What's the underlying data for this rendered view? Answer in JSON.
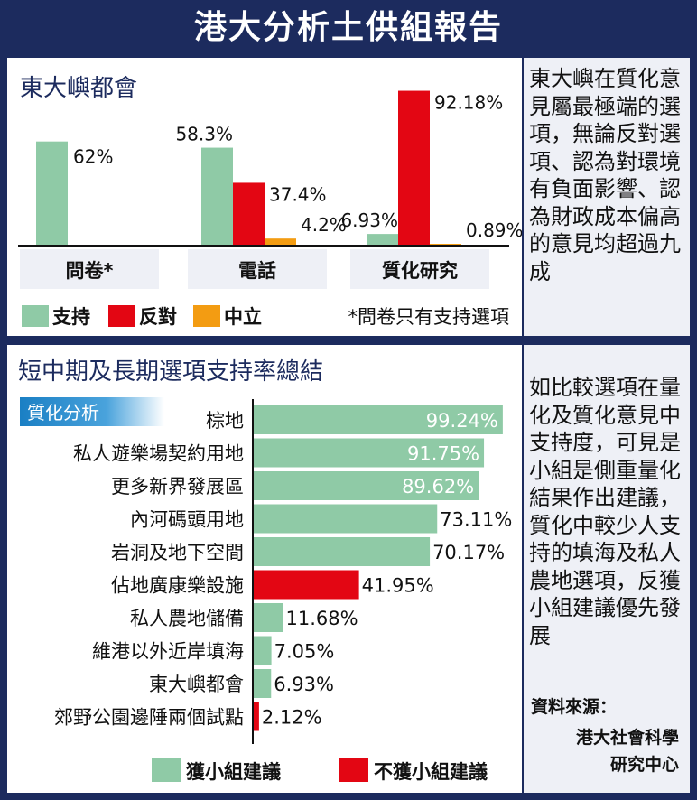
{
  "page_title": "港大分析土供組報告",
  "colors": {
    "support": "#8fcaa6",
    "oppose": "#e30613",
    "neutral": "#f39c12",
    "navy": "#1c2b5e"
  },
  "chart_data": [
    {
      "type": "bar",
      "title": "東大嶼都會",
      "categories": [
        "問卷*",
        "電話",
        "質化研究"
      ],
      "series": [
        {
          "name": "支持",
          "values": [
            62,
            58.3,
            6.93
          ],
          "labels": [
            "62%",
            "58.3%",
            "6.93%"
          ]
        },
        {
          "name": "反對",
          "values": [
            null,
            37.4,
            92.18
          ],
          "labels": [
            "",
            "37.4%",
            "92.18%"
          ]
        },
        {
          "name": "中立",
          "values": [
            null,
            4.2,
            0.89
          ],
          "labels": [
            "",
            "4.2%",
            "0.89%"
          ]
        }
      ],
      "ylim": [
        0,
        100
      ],
      "legend_position": "bottom",
      "note": "*問卷只有支持選項"
    },
    {
      "type": "bar",
      "orientation": "horizontal",
      "title": "短中期及長期選項支持率總結",
      "tag": "質化分析",
      "categories": [
        "棕地",
        "私人遊樂場契約用地",
        "更多新界發展區",
        "內河碼頭用地",
        "岩洞及地下空間",
        "佔地廣康樂設施",
        "私人農地儲備",
        "維港以外近岸填海",
        "東大嶼都會",
        "郊野公園邊陲兩個試點"
      ],
      "values": [
        99.24,
        91.75,
        89.62,
        73.11,
        70.17,
        41.95,
        11.68,
        7.05,
        6.93,
        2.12
      ],
      "labels": [
        "99.24%",
        "91.75%",
        "89.62%",
        "73.11%",
        "70.17%",
        "41.95%",
        "11.68%",
        "7.05%",
        "6.93%",
        "2.12%"
      ],
      "groups": [
        "獲小組建議",
        "獲小組建議",
        "獲小組建議",
        "獲小組建議",
        "獲小組建議",
        "不獲小組建議",
        "獲小組建議",
        "獲小組建議",
        "獲小組建議",
        "不獲小組建議"
      ],
      "legend": [
        "獲小組建議",
        "不獲小組建議"
      ],
      "xlim": [
        0,
        100
      ],
      "legend_position": "bottom"
    }
  ],
  "side_note_1": "東大嶼在質化意見屬最極端的選項，無論反對選項、認為對環境有負面影響、認為財政成本偏高的意見均超過九成",
  "side_note_2": "如比較選項在量化及質化意見中支持度，可見是小組是側重量化結果作出建議，質化中較少人支持的填海及私人農地選項，反獲小組建議優先發展",
  "source_label": "資料來源：",
  "source_name_1": "港大社會科學",
  "source_name_2": "研究中心"
}
